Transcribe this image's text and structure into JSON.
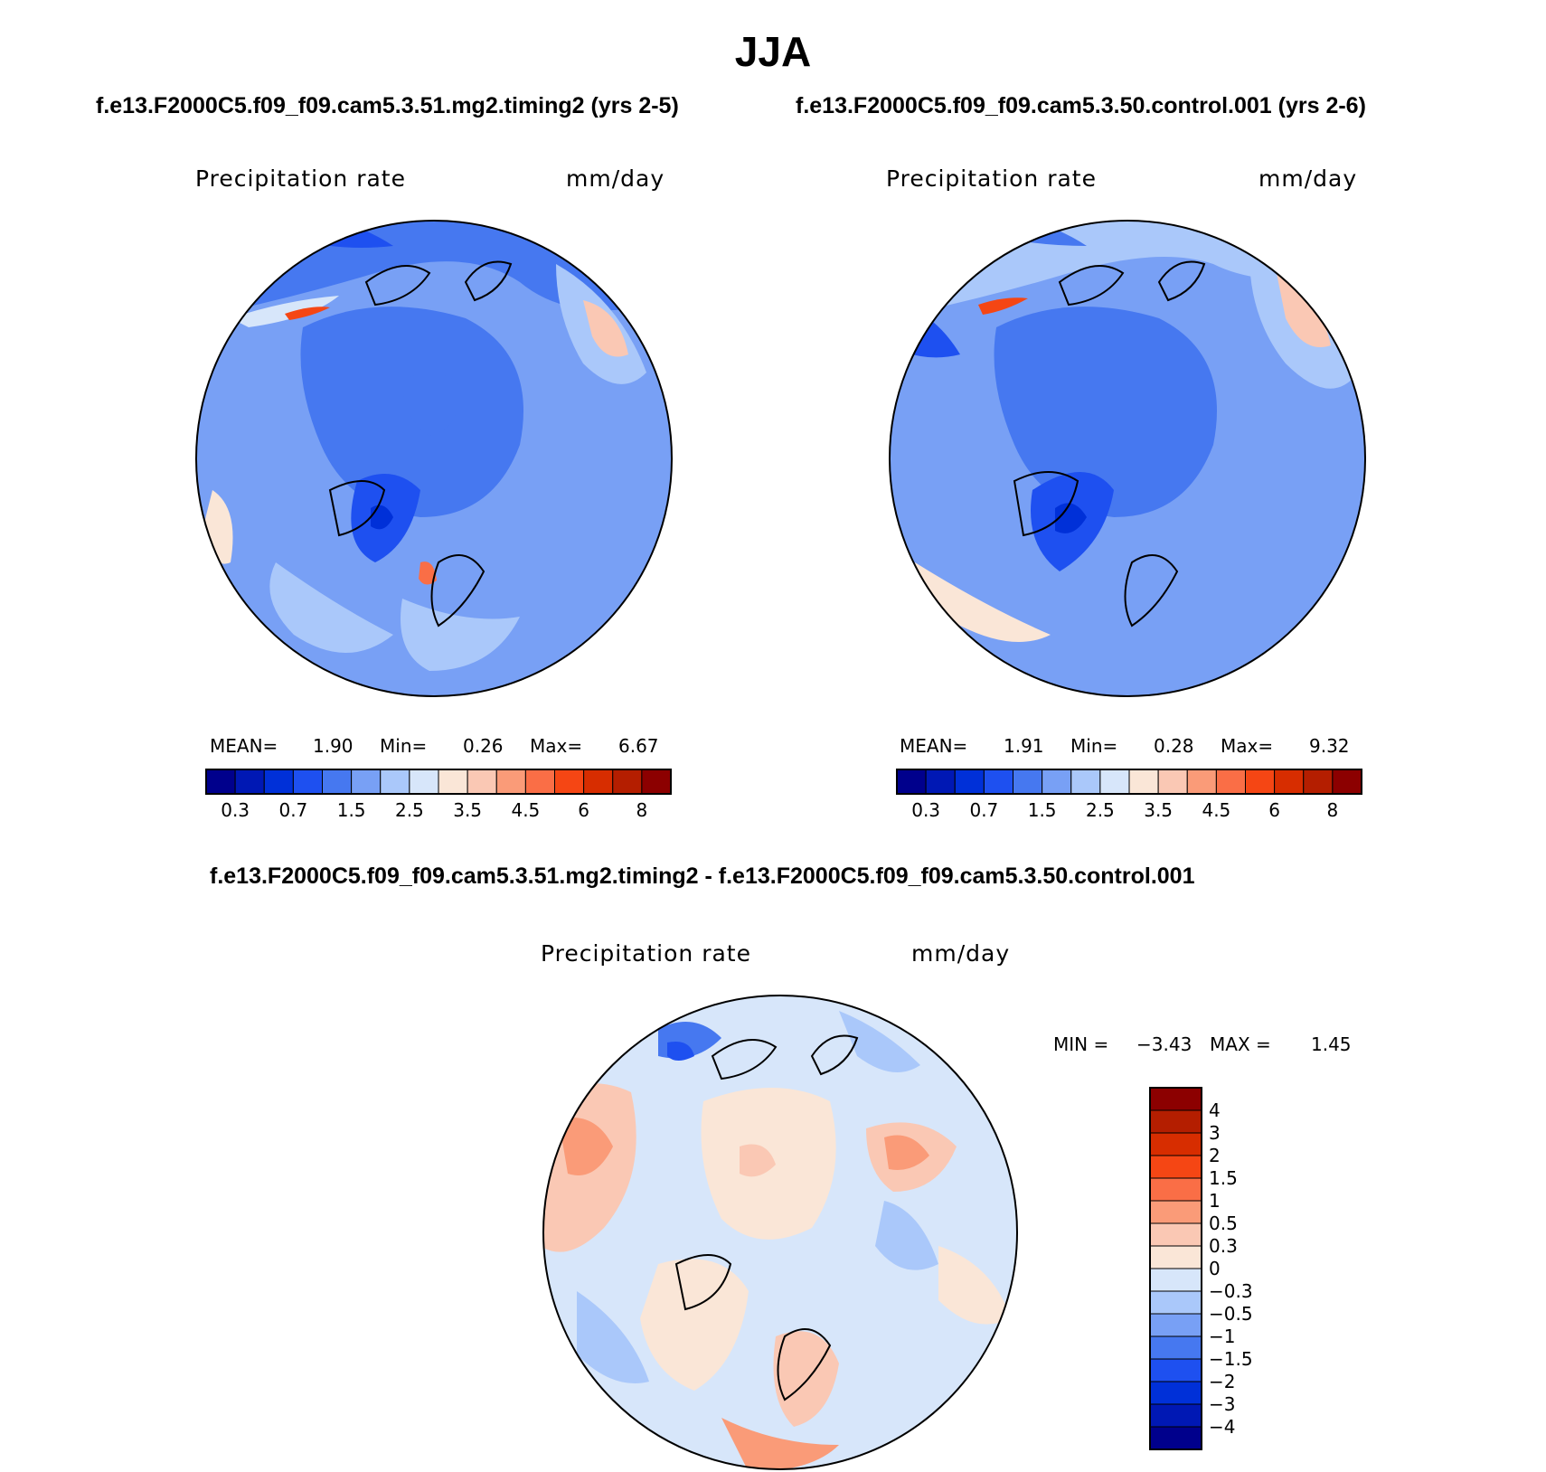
{
  "title": "JJA",
  "panel_left": {
    "case": "f.e13.F2000C5.f09_f09.cam5.3.51.mg2.timing2 (yrs 2-5)",
    "variable": "Precipitation rate",
    "units": "mm/day",
    "mean_label": "MEAN=",
    "mean": "1.90",
    "min_label": "Min=",
    "min": "0.26",
    "max_label": "Max=",
    "max": "6.67"
  },
  "panel_right": {
    "case": "f.e13.F2000C5.f09_f09.cam5.3.50.control.001 (yrs 2-6)",
    "variable": "Precipitation rate",
    "units": "mm/day",
    "mean_label": "MEAN=",
    "mean": "1.91",
    "min_label": "Min=",
    "min": "0.28",
    "max_label": "Max=",
    "max": "9.32"
  },
  "panel_diff": {
    "case": "f.e13.F2000C5.f09_f09.cam5.3.51.mg2.timing2 - f.e13.F2000C5.f09_f09.cam5.3.50.control.001",
    "variable": "Precipitation rate",
    "units": "mm/day",
    "min_label": "MIN =",
    "min": "−3.43",
    "max_label": "MAX =",
    "max": "1.45"
  },
  "colorbar_abs": {
    "colors": [
      "#00008c",
      "#0018b4",
      "#0030d8",
      "#1e50f0",
      "#4678f0",
      "#78a0f5",
      "#aac8fa",
      "#d7e6fa",
      "#fae6d7",
      "#fac8b4",
      "#fa9b78",
      "#fa6e46",
      "#f54614",
      "#d72d00",
      "#b41e00",
      "#8c0000"
    ],
    "labels": [
      "0.3",
      "0.7",
      "1.5",
      "2.5",
      "3.5",
      "4.5",
      "6",
      "8"
    ]
  },
  "colorbar_diff": {
    "colors": [
      "#00008c",
      "#0018b4",
      "#0030d8",
      "#1e50f0",
      "#4678f0",
      "#78a0f5",
      "#aac8fa",
      "#d7e6fa",
      "#fae6d7",
      "#fac8b4",
      "#fa9b78",
      "#fa6e46",
      "#f54614",
      "#d72d00",
      "#b41e00",
      "#8c0000"
    ],
    "labels": [
      "−4",
      "−3",
      "−2",
      "−1.5",
      "−1",
      "−0.5",
      "−0.3",
      "0",
      "0.3",
      "0.5",
      "1",
      "1.5",
      "2",
      "3",
      "4"
    ]
  }
}
